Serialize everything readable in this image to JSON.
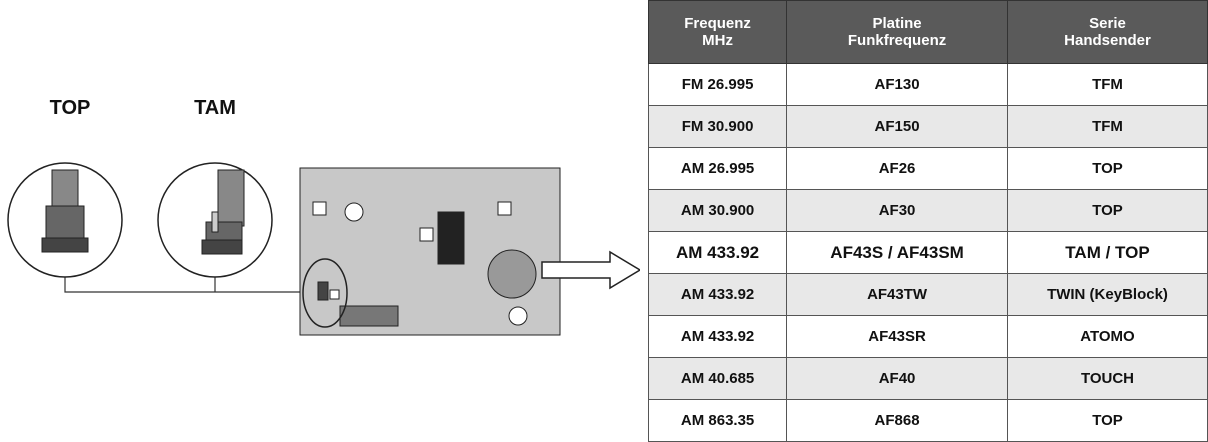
{
  "diagram": {
    "labels": [
      "TOP",
      "TAM"
    ]
  },
  "table": {
    "headers": [
      [
        "Frequenz",
        "MHz"
      ],
      [
        "Platine",
        "Funkfrequenz"
      ],
      [
        "Serie",
        "Handsender"
      ]
    ],
    "rows": [
      [
        "FM 26.995",
        "AF130",
        "TFM"
      ],
      [
        "FM 30.900",
        "AF150",
        "TFM"
      ],
      [
        "AM 26.995",
        "AF26",
        "TOP"
      ],
      [
        "AM 30.900",
        "AF30",
        "TOP"
      ],
      [
        "AM 433.92",
        "AF43S / AF43SM",
        "TAM / TOP"
      ],
      [
        "AM 433.92",
        "AF43TW",
        "TWIN (KeyBlock)"
      ],
      [
        "AM 433.92",
        "AF43SR",
        "ATOMO"
      ],
      [
        "AM 40.685",
        "AF40",
        "TOUCH"
      ],
      [
        "AM 863.35",
        "AF868",
        "TOP"
      ]
    ],
    "highlighted_row": 4
  }
}
